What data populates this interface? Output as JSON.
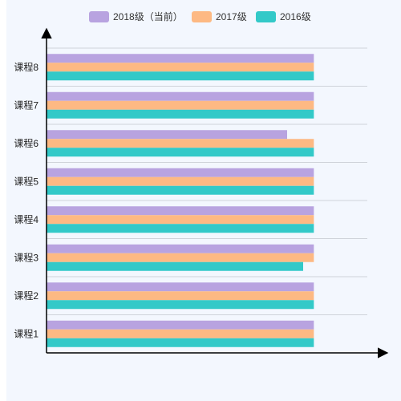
{
  "colors": {
    "background": "#f3f7fe",
    "grid": "#cfd3da",
    "axis": "#000000"
  },
  "chart_data": {
    "type": "bar",
    "orientation": "horizontal",
    "categories": [
      "课程1",
      "课程2",
      "课程3",
      "课程4",
      "课程5",
      "课程6",
      "课程7",
      "课程8"
    ],
    "series": [
      {
        "name": "2018级（当前）",
        "color": "#b8a3e0",
        "values": [
          100,
          100,
          100,
          100,
          100,
          90,
          100,
          100
        ]
      },
      {
        "name": "2017级",
        "color": "#fdb983",
        "values": [
          100,
          100,
          100,
          100,
          100,
          100,
          100,
          100
        ]
      },
      {
        "name": "2016级",
        "color": "#33c9c8",
        "values": [
          100,
          100,
          96,
          100,
          100,
          100,
          100,
          100
        ]
      }
    ],
    "xlim": [
      0,
      120
    ],
    "grid": true,
    "legend": "top-center",
    "xlabel": "",
    "ylabel": "",
    "title": ""
  }
}
